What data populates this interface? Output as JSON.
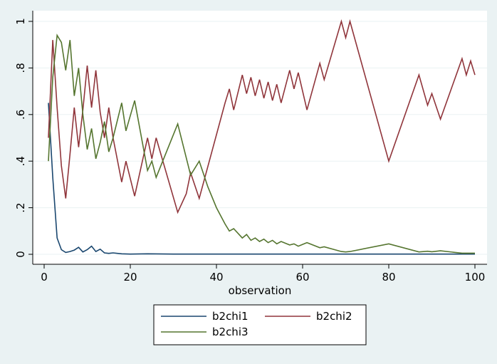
{
  "chart_data": {
    "type": "line",
    "xlabel": "observation",
    "ylabel": "",
    "xlim": [
      0,
      100
    ],
    "ylim": [
      0,
      1
    ],
    "x_ticks": [
      0,
      20,
      40,
      60,
      80,
      100
    ],
    "y_ticks": [
      0,
      0.2,
      0.4,
      0.6,
      0.8,
      1
    ],
    "y_tick_labels": [
      "0",
      ".2",
      ".4",
      ".6",
      ".8",
      "1"
    ],
    "grid": true,
    "legend_position": "bottom",
    "series": [
      {
        "name": "b2chi1",
        "color": "#1a476f",
        "points": [
          [
            1,
            0.65
          ],
          [
            2,
            0.33
          ],
          [
            3,
            0.07
          ],
          [
            4,
            0.02
          ],
          [
            5,
            0.008
          ],
          [
            6,
            0.012
          ],
          [
            7,
            0.018
          ],
          [
            8,
            0.03
          ],
          [
            9,
            0.01
          ],
          [
            10,
            0.02
          ],
          [
            11,
            0.035
          ],
          [
            12,
            0.012
          ],
          [
            13,
            0.022
          ],
          [
            14,
            0.006
          ],
          [
            15,
            0.004
          ],
          [
            16,
            0.006
          ],
          [
            18,
            0.002
          ],
          [
            20,
            0.001
          ],
          [
            24,
            0.002
          ],
          [
            30,
            0.001
          ],
          [
            40,
            0.001
          ],
          [
            60,
            0.001
          ],
          [
            80,
            0.001
          ],
          [
            100,
            0.001
          ]
        ]
      },
      {
        "name": "b2chi2",
        "color": "#90353b",
        "points": [
          [
            1,
            0.5
          ],
          [
            2,
            0.92
          ],
          [
            3,
            0.63
          ],
          [
            4,
            0.38
          ],
          [
            5,
            0.24
          ],
          [
            6,
            0.43
          ],
          [
            7,
            0.63
          ],
          [
            8,
            0.46
          ],
          [
            9,
            0.62
          ],
          [
            10,
            0.81
          ],
          [
            11,
            0.63
          ],
          [
            12,
            0.79
          ],
          [
            13,
            0.61
          ],
          [
            14,
            0.5
          ],
          [
            15,
            0.63
          ],
          [
            16,
            0.5
          ],
          [
            18,
            0.31
          ],
          [
            19,
            0.4
          ],
          [
            21,
            0.25
          ],
          [
            24,
            0.5
          ],
          [
            25,
            0.41
          ],
          [
            26,
            0.5
          ],
          [
            31,
            0.18
          ],
          [
            33,
            0.26
          ],
          [
            34,
            0.35
          ],
          [
            36,
            0.24
          ],
          [
            42,
            0.65
          ],
          [
            43,
            0.71
          ],
          [
            44,
            0.62
          ],
          [
            46,
            0.77
          ],
          [
            47,
            0.69
          ],
          [
            48,
            0.76
          ],
          [
            49,
            0.68
          ],
          [
            50,
            0.75
          ],
          [
            51,
            0.67
          ],
          [
            52,
            0.74
          ],
          [
            53,
            0.66
          ],
          [
            54,
            0.73
          ],
          [
            55,
            0.65
          ],
          [
            57,
            0.79
          ],
          [
            58,
            0.71
          ],
          [
            59,
            0.78
          ],
          [
            61,
            0.62
          ],
          [
            64,
            0.82
          ],
          [
            65,
            0.75
          ],
          [
            69,
            1.0
          ],
          [
            70,
            0.93
          ],
          [
            71,
            1.0
          ],
          [
            80,
            0.4
          ],
          [
            87,
            0.77
          ],
          [
            89,
            0.64
          ],
          [
            90,
            0.69
          ],
          [
            92,
            0.58
          ],
          [
            97,
            0.84
          ],
          [
            98,
            0.77
          ],
          [
            99,
            0.83
          ],
          [
            100,
            0.77
          ]
        ]
      },
      {
        "name": "b2chi3",
        "color": "#55752f",
        "points": [
          [
            1,
            0.4
          ],
          [
            2,
            0.76
          ],
          [
            3,
            0.94
          ],
          [
            4,
            0.91
          ],
          [
            5,
            0.79
          ],
          [
            6,
            0.92
          ],
          [
            7,
            0.68
          ],
          [
            8,
            0.8
          ],
          [
            9,
            0.6
          ],
          [
            10,
            0.45
          ],
          [
            11,
            0.54
          ],
          [
            12,
            0.41
          ],
          [
            13,
            0.48
          ],
          [
            14,
            0.57
          ],
          [
            15,
            0.44
          ],
          [
            16,
            0.5
          ],
          [
            18,
            0.65
          ],
          [
            19,
            0.53
          ],
          [
            21,
            0.66
          ],
          [
            24,
            0.36
          ],
          [
            25,
            0.4
          ],
          [
            26,
            0.33
          ],
          [
            31,
            0.56
          ],
          [
            34,
            0.34
          ],
          [
            36,
            0.4
          ],
          [
            38,
            0.29
          ],
          [
            40,
            0.2
          ],
          [
            42,
            0.13
          ],
          [
            43,
            0.1
          ],
          [
            44,
            0.11
          ],
          [
            46,
            0.07
          ],
          [
            47,
            0.085
          ],
          [
            48,
            0.06
          ],
          [
            49,
            0.07
          ],
          [
            50,
            0.055
          ],
          [
            51,
            0.065
          ],
          [
            52,
            0.05
          ],
          [
            53,
            0.06
          ],
          [
            54,
            0.045
          ],
          [
            55,
            0.055
          ],
          [
            57,
            0.04
          ],
          [
            58,
            0.045
          ],
          [
            59,
            0.035
          ],
          [
            61,
            0.05
          ],
          [
            64,
            0.028
          ],
          [
            65,
            0.032
          ],
          [
            69,
            0.012
          ],
          [
            70,
            0.01
          ],
          [
            71,
            0.012
          ],
          [
            80,
            0.045
          ],
          [
            87,
            0.01
          ],
          [
            89,
            0.013
          ],
          [
            90,
            0.011
          ],
          [
            92,
            0.015
          ],
          [
            97,
            0.005
          ],
          [
            98,
            0.005
          ],
          [
            99,
            0.005
          ],
          [
            100,
            0.005
          ]
        ]
      }
    ]
  }
}
